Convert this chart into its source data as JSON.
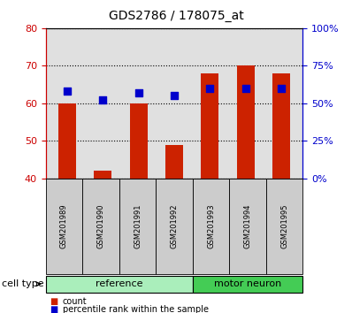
{
  "title": "GDS2786 / 178075_at",
  "samples": [
    "GSM201989",
    "GSM201990",
    "GSM201991",
    "GSM201992",
    "GSM201993",
    "GSM201994",
    "GSM201995"
  ],
  "count_values": [
    60,
    42,
    60,
    49,
    68,
    70,
    68
  ],
  "percentile_values": [
    58,
    52,
    57,
    55,
    60,
    60,
    60
  ],
  "left_ylim": [
    40,
    80
  ],
  "left_yticks": [
    40,
    50,
    60,
    70,
    80
  ],
  "right_ylim": [
    0,
    100
  ],
  "right_yticks": [
    0,
    25,
    50,
    75,
    100
  ],
  "right_yticklabels": [
    "0%",
    "25%",
    "50%",
    "75%",
    "100%"
  ],
  "bar_color": "#cc2200",
  "dot_color": "#0000cc",
  "groups": [
    {
      "label": "reference",
      "indices": [
        0,
        1,
        2,
        3
      ],
      "color": "#aaeebb"
    },
    {
      "label": "motor neuron",
      "indices": [
        4,
        5,
        6
      ],
      "color": "#44cc55"
    }
  ],
  "bar_width": 0.5,
  "background_color": "#ffffff",
  "plot_bg_color": "#e0e0e0",
  "left_tick_color": "#cc0000",
  "right_tick_color": "#0000cc",
  "sample_box_color": "#cccccc"
}
